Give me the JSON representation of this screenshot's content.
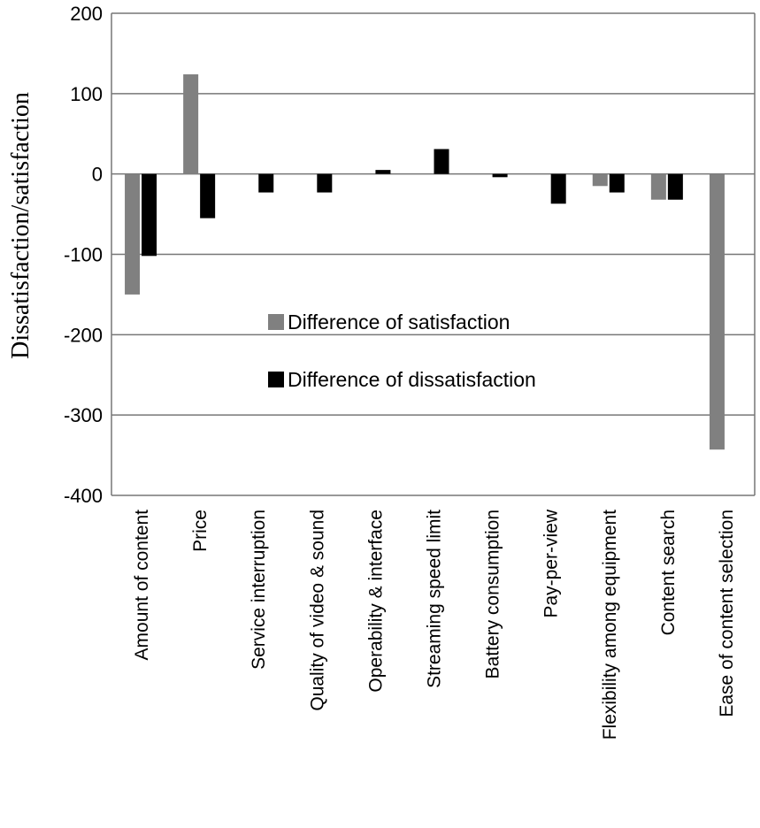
{
  "chart_data": {
    "type": "bar",
    "title": "",
    "xlabel": "",
    "ylabel": "Dissatisfaction/satisfaction",
    "ylim": [
      -400,
      200
    ],
    "yticks": [
      200,
      100,
      0,
      -100,
      -200,
      -300,
      -400
    ],
    "grid": true,
    "legend_position": "center-left",
    "categories": [
      "Amount of content",
      "Price",
      "Service interruption",
      "Quality of video & sound",
      "Operability & interface",
      "Streaming speed limit",
      "Battery consumption",
      "Pay-per-view",
      "Flexibility among equipment",
      "Content search",
      "Ease of content selection"
    ],
    "series": [
      {
        "name": "Difference of satisfaction",
        "color": "#808080",
        "values": [
          -150,
          124,
          0,
          0,
          0,
          0,
          0,
          0,
          -15,
          -32,
          -343
        ]
      },
      {
        "name": "Difference of dissatisfaction",
        "color": "#000000",
        "values": [
          -102,
          -55,
          -23,
          -23,
          5,
          31,
          -4,
          -37,
          -23,
          -32,
          0
        ]
      }
    ]
  }
}
